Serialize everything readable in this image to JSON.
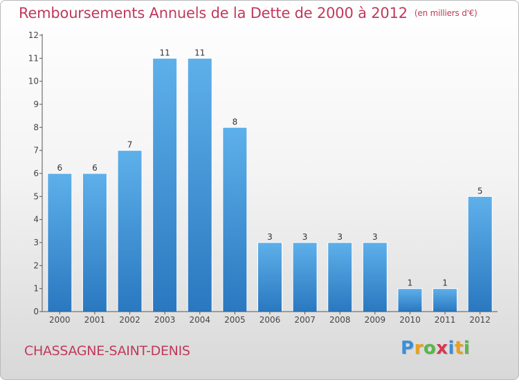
{
  "title": "Remboursements Annuels de la Dette de 2000 à 2012",
  "unit_label": "(en milliers d'€)",
  "commune": "CHASSAGNE-SAINT-DENIS",
  "logo": {
    "letters": [
      "P",
      "r",
      "o",
      "x",
      "i",
      "t",
      "i"
    ]
  },
  "colors": {
    "title": "#c0395b",
    "bar_top": "#5eb0ea",
    "bar_bottom": "#2a78c0",
    "axis": "#555555"
  },
  "chart_data": {
    "type": "bar",
    "categories": [
      "2000",
      "2001",
      "2002",
      "2003",
      "2004",
      "2005",
      "2006",
      "2007",
      "2008",
      "2009",
      "2010",
      "2011",
      "2012"
    ],
    "values": [
      6,
      6,
      7,
      11,
      11,
      8,
      3,
      3,
      3,
      3,
      1,
      1,
      5
    ],
    "ylim": [
      0,
      12
    ],
    "yticks": [
      0,
      1,
      2,
      3,
      4,
      5,
      6,
      7,
      8,
      9,
      10,
      11,
      12
    ],
    "grid": false,
    "data_labels": true
  }
}
